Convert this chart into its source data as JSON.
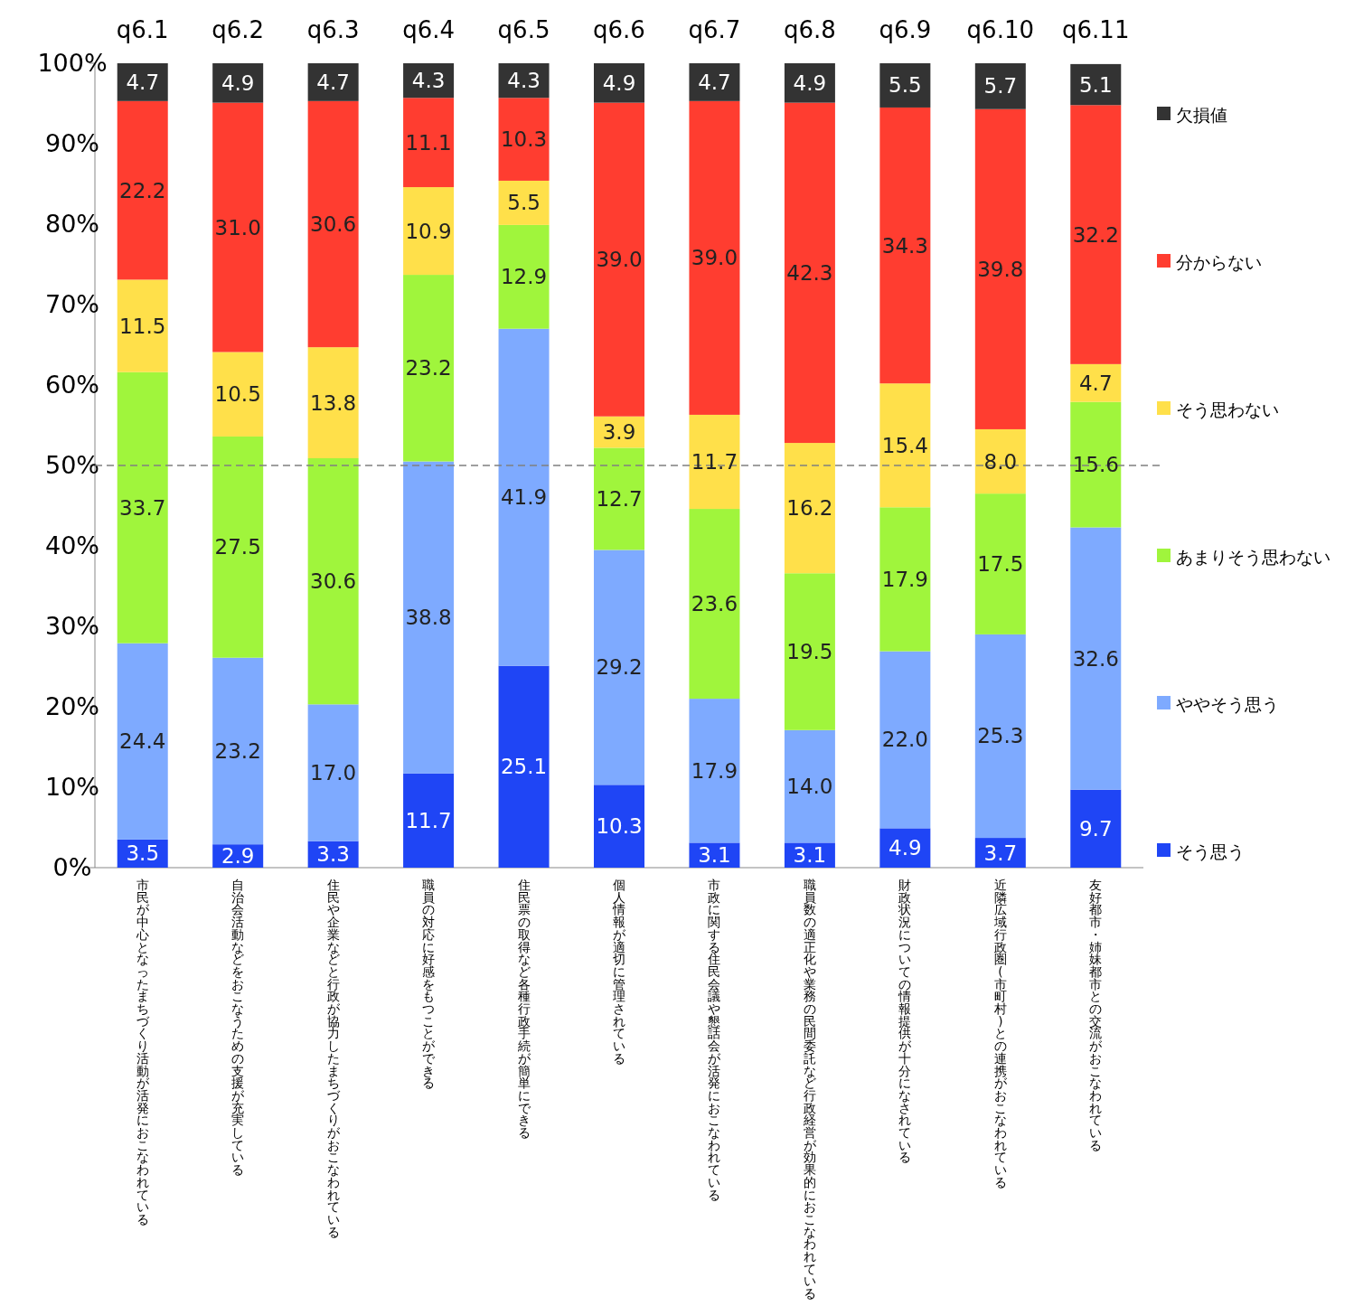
{
  "chart_data": {
    "type": "bar",
    "stacked": true,
    "categories": [
      "市民が中心となったまちづくり活動が活発におこなわれている",
      "自治会活動などをおこなうための支援が充実している",
      "住民や企業などと行政が協力したまちづくりがおこなわれている",
      "職員の対応に好感をもつことができる",
      "住民票の取得など各種行政手続が簡単にできる",
      "個人情報が適切に管理されている",
      "市政に関する住民会議や懇話会が活発におこなわれている",
      "職員数の適正化や業務の民間委託など行政経営が効果的におこなわれている",
      "財政状況についての情報提供が十分になされている",
      "近隣広域行政圏(市町村)との連携がおこなわれている",
      "友好都市・姉妹都市との交流がおこなわれている"
    ],
    "series": [
      {
        "name": "そう思う",
        "color": "#1f45f5",
        "values": [
          3.5,
          2.9,
          3.3,
          11.7,
          25.1,
          10.3,
          3.1,
          3.1,
          4.9,
          3.7,
          9.7
        ],
        "value_labels": [
          "3.5",
          "2.9",
          "3.3",
          "11.7",
          "25.1",
          "10.3",
          "3.1",
          "3.1",
          "4.9",
          "3.7",
          "9.7"
        ]
      },
      {
        "name": "ややそう思う",
        "color": "#7eaaff",
        "values": [
          24.4,
          23.2,
          17.0,
          38.8,
          41.9,
          29.2,
          17.9,
          14.0,
          22.0,
          25.3,
          32.6
        ],
        "value_labels": [
          "24.4",
          "23.2",
          "17.0",
          "38.8",
          "41.9",
          "29.2",
          "17.9",
          "14.0",
          "22.0",
          "25.3",
          "32.6"
        ]
      },
      {
        "name": "あまりそう思わない",
        "color": "#a0f53c",
        "values": [
          33.7,
          27.5,
          30.6,
          23.2,
          12.9,
          12.7,
          23.6,
          19.5,
          17.9,
          17.5,
          15.6
        ],
        "value_labels": [
          "33.7",
          "27.5",
          "30.6",
          "23.2",
          "12.9",
          "12.7",
          "23.6",
          "19.5",
          "17.9",
          "17.5",
          "15.6"
        ]
      },
      {
        "name": "そう思わない",
        "color": "#ffe04a",
        "values": [
          11.5,
          10.5,
          13.8,
          10.9,
          5.5,
          3.9,
          11.7,
          16.2,
          15.4,
          8.0,
          4.7
        ],
        "value_labels": [
          "11.5",
          "10.5",
          "13.8",
          "10.9",
          "5.5",
          "3.9",
          "11.7",
          "16.2",
          "15.4",
          "8.0",
          "4.7"
        ]
      },
      {
        "name": "分からない",
        "color": "#ff3d30",
        "values": [
          22.2,
          31.0,
          30.6,
          11.1,
          10.3,
          39.0,
          39.0,
          42.3,
          34.3,
          39.8,
          32.2
        ],
        "value_labels": [
          "22.2",
          "31.0",
          "30.6",
          "11.1",
          "10.3",
          "39.0",
          "39.0",
          "42.3",
          "34.3",
          "39.8",
          "32.2"
        ]
      },
      {
        "name": "欠損値",
        "color": "#333333",
        "values": [
          4.7,
          4.9,
          4.7,
          4.3,
          4.3,
          4.9,
          4.7,
          4.9,
          5.5,
          5.7,
          5.1
        ],
        "value_labels": [
          "4.7",
          "4.9",
          "4.7",
          "4.3",
          "4.3",
          "4.9",
          "4.7",
          "4.9",
          "5.5",
          "5.7",
          "5.1"
        ]
      }
    ],
    "ylim": [
      0,
      100
    ],
    "yticks": [
      {
        "value": 0,
        "label": "0%"
      },
      {
        "value": 10,
        "label": "10%"
      },
      {
        "value": 20,
        "label": "20%"
      },
      {
        "value": 30,
        "label": "30%"
      },
      {
        "value": 40,
        "label": "40%"
      },
      {
        "value": 50,
        "label": "50%"
      },
      {
        "value": 60,
        "label": "60%"
      },
      {
        "value": 70,
        "label": "70%"
      },
      {
        "value": 80,
        "label": "80%"
      },
      {
        "value": 90,
        "label": "90%"
      },
      {
        "value": 100,
        "label": "100%"
      }
    ],
    "ref_lines": [
      {
        "axis": "y",
        "value": 50,
        "color": "#808080",
        "line_style": "dashed"
      }
    ],
    "annotations": [
      "q6.1",
      "q6.2",
      "q6.3",
      "q6.4",
      "q6.5",
      "q6.6",
      "q6.7",
      "q6.8",
      "q6.9",
      "q6.10",
      "q6.11"
    ],
    "grid": false,
    "legend": "right"
  }
}
